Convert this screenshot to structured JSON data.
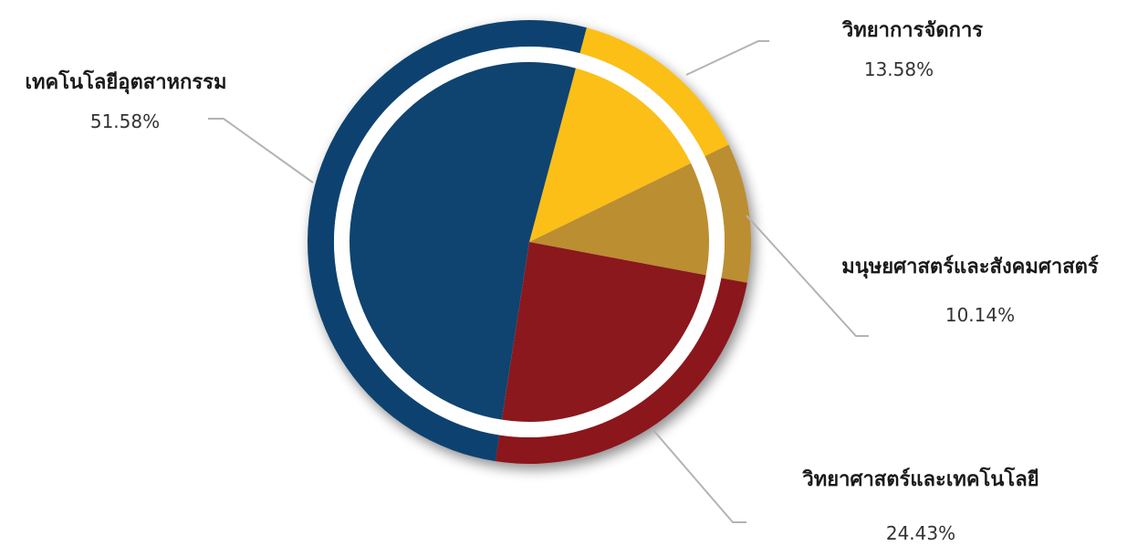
{
  "chart_data": {
    "type": "pie",
    "start_angle_deg": 15,
    "direction": "clockwise",
    "slices": [
      {
        "label": "วิทยาการจัดการ",
        "value": 13.58,
        "value_text": "13.58%",
        "color": "#FBBF17"
      },
      {
        "label": "มนุษยศาสตร์และสังคมศาสตร์",
        "value": 10.14,
        "value_text": "10.14%",
        "color": "#BB8E31"
      },
      {
        "label": "วิทยาศาสตร์และเทคโนโลยี",
        "value": 24.43,
        "value_text": "24.43%",
        "color": "#8B181C"
      },
      {
        "label": "เทคโนโลยีอุตสาหกรรม",
        "value": 51.58,
        "value_text": "51.58%",
        "color": "#0F4370"
      }
    ],
    "legend": "none",
    "data_labels": "outside with leader lines"
  }
}
